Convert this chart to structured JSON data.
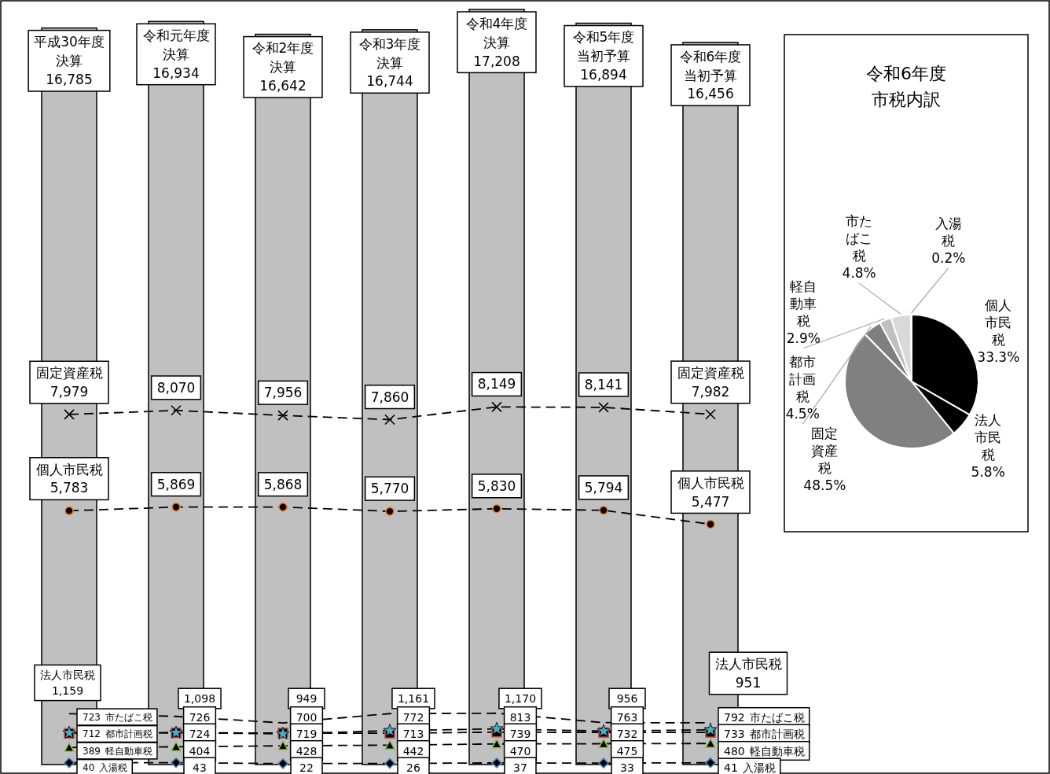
{
  "chart_data": [
    {
      "type": "bar",
      "categories": [
        "平成30年度決算",
        "令和元年度決算",
        "令和2年度決算",
        "令和3年度決算",
        "令和4年度決算",
        "令和5年度当初予算",
        "令和6年度当初予算"
      ],
      "line_style": "dashed",
      "series": [
        {
          "type": "bar",
          "color": "#c0c0c0",
          "values": [
            16785,
            16934,
            16642,
            16744,
            17208,
            16894,
            16456
          ],
          "value_labels": [
            "16,785",
            "16,934",
            "16,642",
            "16,744",
            "17,208",
            "16,894",
            "16,456"
          ]
        },
        {
          "type": "line",
          "name": "固定資産税",
          "color": "#000000",
          "marker": "cross",
          "values": [
            7979,
            8070,
            7956,
            7860,
            8149,
            8141,
            7982
          ],
          "value_labels": [
            "7,979",
            "8,070",
            "7,956",
            "7,860",
            "8,149",
            "8,141",
            "7,982"
          ]
        },
        {
          "type": "line",
          "name": "個人市民税",
          "color": "#ed7d31",
          "marker": "circle",
          "values": [
            5783,
            5869,
            5868,
            5770,
            5830,
            5794,
            5477
          ],
          "value_labels": [
            "5,783",
            "5,869",
            "5,868",
            "5,770",
            "5,830",
            "5,794",
            "5,477"
          ]
        },
        {
          "type": "line",
          "name": "法人市民税",
          "color": "#000000",
          "marker": "none",
          "values": [
            1159,
            1098,
            949,
            1161,
            1170,
            956,
            951
          ],
          "value_labels": [
            "1,159",
            "1,098",
            "949",
            "1,161",
            "1,170",
            "956",
            "951"
          ]
        },
        {
          "type": "line",
          "name": "市たばこ税",
          "color": "#4bacc6",
          "marker": "star",
          "values": [
            723,
            726,
            700,
            772,
            813,
            763,
            792
          ],
          "value_labels": [
            "723",
            "726",
            "700",
            "772",
            "813",
            "763",
            "792"
          ]
        },
        {
          "type": "line",
          "name": "都市計画税",
          "color": "#c0504d",
          "marker": "square",
          "values": [
            712,
            724,
            719,
            713,
            739,
            732,
            733
          ],
          "value_labels": [
            "712",
            "724",
            "719",
            "713",
            "739",
            "732",
            "733"
          ]
        },
        {
          "type": "line",
          "name": "軽自動車税",
          "color": "#9bbb59",
          "marker": "triangle",
          "values": [
            389,
            404,
            428,
            442,
            470,
            475,
            480
          ],
          "value_labels": [
            "389",
            "404",
            "428",
            "442",
            "470",
            "475",
            "480"
          ]
        },
        {
          "type": "line",
          "name": "入湯税",
          "color": "#4f81bd",
          "marker": "diamond",
          "values": [
            40,
            43,
            22,
            26,
            37,
            33,
            41
          ],
          "value_labels": [
            "40",
            "43",
            "22",
            "26",
            "37",
            "33",
            "41"
          ]
        }
      ]
    },
    {
      "type": "pie",
      "title": "令和6年度市税内訳",
      "value_labels": [
        "33.3%",
        "5.8%",
        "48.5%",
        "4.5%",
        "2.9%",
        "4.8%",
        "0.2%"
      ],
      "categories": [
        "個人市民税",
        "法人市民税",
        "固定資産税",
        "都市計画税",
        "軽自動車税",
        "市たばこ税",
        "入湯税"
      ],
      "values": [
        33.3,
        5.8,
        48.5,
        4.5,
        2.9,
        4.8,
        0.2
      ],
      "colors": [
        "#000000",
        "#000000",
        "#808080",
        "#7f7f7f",
        "#bfbfbf",
        "#d9d9d9",
        "#e6e6e6"
      ]
    }
  ]
}
